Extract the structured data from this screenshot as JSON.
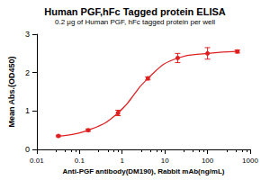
{
  "chart_data": {
    "type": "scatter",
    "title": "Human PGF,hFc Tagged protein ELISA",
    "subtitle": "0.2 μg of Human PGF, hFc tagged protein per well",
    "x_label": "Anti-PGF antibody(DM190), Rabbit mAb(ng/mL)",
    "y_label": "Mean Abs.(OD450)",
    "x": [
      0.032,
      0.16,
      0.8,
      4,
      20,
      100,
      500
    ],
    "values": [
      0.35,
      0.5,
      0.95,
      1.85,
      2.38,
      2.5,
      2.55
    ],
    "errors": [
      0.02,
      0.03,
      0.07,
      0.04,
      0.12,
      0.15,
      0.04
    ],
    "color": "#e02020",
    "marker": "circle",
    "line_style": "smooth",
    "log": "x",
    "xlim": [
      0.01,
      1000
    ],
    "xticks": [
      0.01,
      0.1,
      1,
      10,
      100,
      1000
    ],
    "ylim": [
      0,
      3
    ],
    "yticks": [
      0,
      1,
      2,
      3
    ],
    "grid": false
  }
}
